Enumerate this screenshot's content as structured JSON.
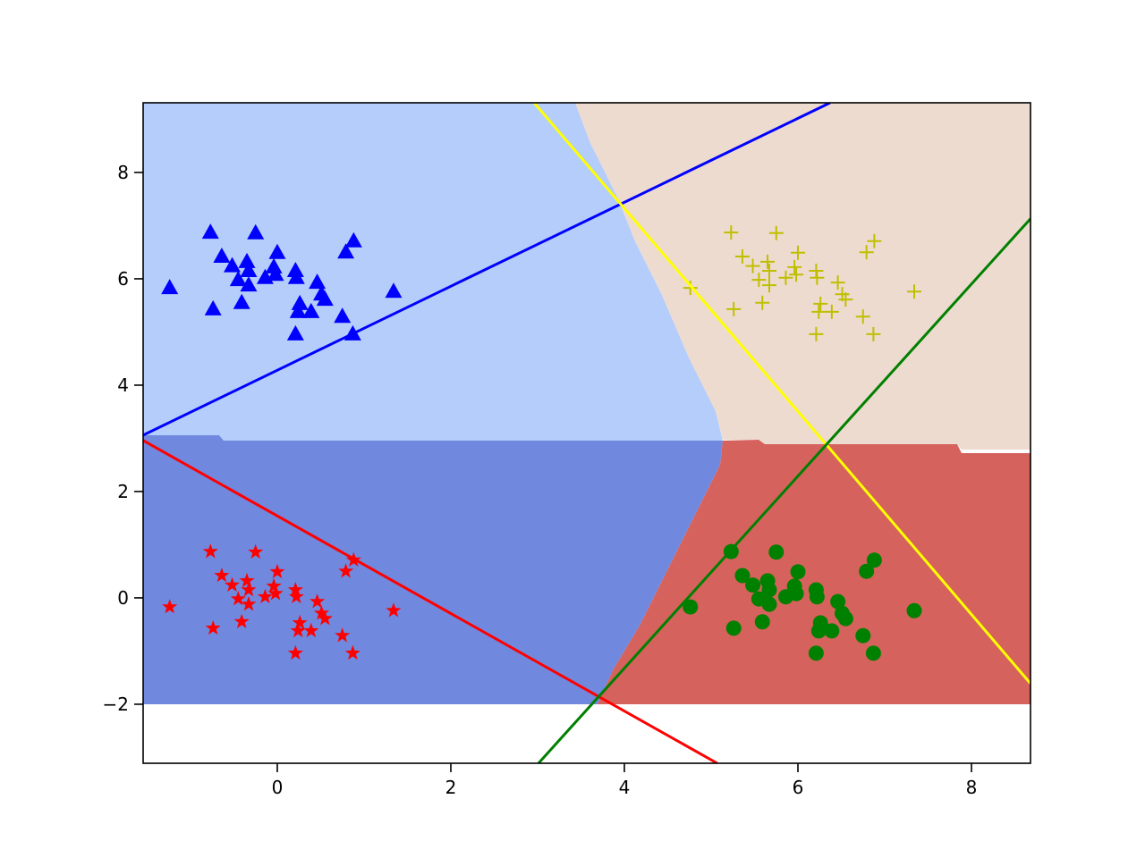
{
  "chart_data": {
    "type": "scatter",
    "xlim": [
      -1.546,
      8.68
    ],
    "ylim": [
      -3.11,
      9.31
    ],
    "xticks": [
      0,
      2,
      4,
      6,
      8
    ],
    "yticks": [
      {
        "value": -2,
        "label": "−2"
      },
      0,
      2,
      4,
      6,
      8
    ],
    "series": [
      {
        "color": "#ff0000",
        "marker": "star",
        "x": [
          -1.24,
          -0.77,
          -0.74,
          -0.64,
          -0.52,
          -0.45,
          -0.41,
          -0.35,
          -0.33,
          -0.33,
          -0.25,
          -0.14,
          -0.04,
          -0.02,
          0.0,
          0.21,
          0.22,
          0.21,
          0.24,
          0.26,
          0.39,
          0.46,
          0.51,
          0.55,
          0.75,
          0.79,
          0.88,
          0.87,
          1.34
        ],
        "values": [
          -0.17,
          0.87,
          -0.57,
          0.42,
          0.24,
          -0.02,
          -0.45,
          0.32,
          0.15,
          -0.12,
          0.86,
          0.02,
          0.22,
          0.08,
          0.49,
          0.15,
          0.02,
          -1.04,
          -0.62,
          -0.47,
          -0.62,
          -0.07,
          -0.29,
          -0.39,
          -0.71,
          0.5,
          0.71,
          -1.04,
          -0.24
        ]
      },
      {
        "color": "#0000ff",
        "marker": "triangle",
        "x": [
          -1.24,
          -0.77,
          -0.74,
          -0.64,
          -0.52,
          -0.45,
          -0.41,
          -0.35,
          -0.33,
          -0.33,
          -0.25,
          -0.14,
          -0.04,
          -0.02,
          0.0,
          0.21,
          0.22,
          0.21,
          0.24,
          0.26,
          0.39,
          0.46,
          0.51,
          0.55,
          0.75,
          0.79,
          0.88,
          0.87,
          1.34
        ],
        "values": [
          5.83,
          6.87,
          5.43,
          6.42,
          6.24,
          5.98,
          5.55,
          6.32,
          6.15,
          5.88,
          6.86,
          6.02,
          6.22,
          6.08,
          6.49,
          6.15,
          6.02,
          4.96,
          5.38,
          5.53,
          5.38,
          5.93,
          5.71,
          5.61,
          5.29,
          6.5,
          6.71,
          4.96,
          5.76
        ]
      },
      {
        "color": "#008000",
        "marker": "circle",
        "x": [
          4.76,
          5.23,
          5.26,
          5.36,
          5.48,
          5.55,
          5.59,
          5.65,
          5.67,
          5.67,
          5.75,
          5.86,
          5.96,
          5.98,
          6.0,
          6.21,
          6.22,
          6.21,
          6.24,
          6.26,
          6.39,
          6.46,
          6.51,
          6.55,
          6.75,
          6.79,
          6.88,
          6.87,
          7.34
        ],
        "values": [
          -0.17,
          0.87,
          -0.57,
          0.42,
          0.24,
          -0.02,
          -0.45,
          0.32,
          0.15,
          -0.12,
          0.86,
          0.02,
          0.22,
          0.08,
          0.49,
          0.15,
          0.02,
          -1.04,
          -0.62,
          -0.47,
          -0.62,
          -0.07,
          -0.29,
          -0.39,
          -0.71,
          0.5,
          0.71,
          -1.04,
          -0.24
        ]
      },
      {
        "color": "#bfbf00",
        "marker": "plus",
        "x": [
          4.76,
          5.23,
          5.26,
          5.36,
          5.48,
          5.55,
          5.59,
          5.65,
          5.67,
          5.67,
          5.75,
          5.86,
          5.96,
          5.98,
          6.0,
          6.21,
          6.22,
          6.21,
          6.24,
          6.26,
          6.39,
          6.46,
          6.51,
          6.55,
          6.75,
          6.79,
          6.88,
          6.87,
          7.34
        ],
        "values": [
          5.83,
          6.87,
          5.43,
          6.42,
          6.24,
          5.98,
          5.55,
          6.32,
          6.15,
          5.88,
          6.86,
          6.02,
          6.22,
          6.08,
          6.49,
          6.15,
          6.02,
          4.96,
          5.38,
          5.53,
          5.38,
          5.93,
          5.71,
          5.61,
          5.29,
          6.5,
          6.71,
          4.96,
          5.76
        ]
      }
    ],
    "lines": [
      {
        "color": "#0000ff",
        "x": [
          -1.546,
          6.37
        ],
        "values": [
          3.06,
          9.31
        ]
      },
      {
        "color": "#ff0000",
        "x": [
          -1.546,
          5.07
        ],
        "values": [
          2.96,
          -3.11
        ]
      },
      {
        "color": "#ffff00",
        "x": [
          2.96,
          8.68
        ],
        "values": [
          9.31,
          -1.61
        ]
      },
      {
        "color": "#008000",
        "x": [
          3.01,
          8.68
        ],
        "values": [
          -3.11,
          7.13
        ]
      }
    ]
  }
}
